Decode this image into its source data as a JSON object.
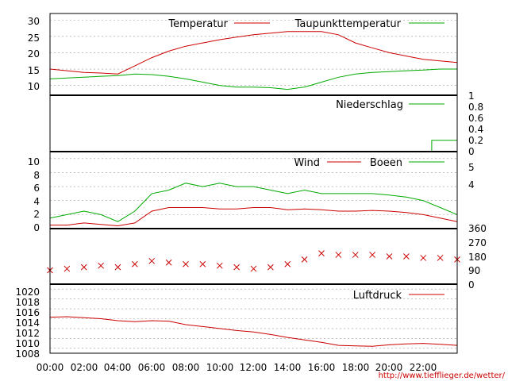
{
  "chart_data": [
    {
      "type": "line",
      "series": [
        {
          "name": "Temperatur",
          "color": "#cc0000",
          "x": [
            0,
            1,
            2,
            3,
            4,
            5,
            6,
            7,
            8,
            9,
            10,
            11,
            12,
            13,
            14,
            15,
            16,
            17,
            18,
            19,
            20,
            21,
            22,
            23,
            24
          ],
          "values": [
            15,
            14.5,
            14,
            13.8,
            13.5,
            16,
            18.5,
            20.5,
            22,
            23,
            24,
            24.8,
            25.5,
            26,
            26.5,
            26.5,
            26.5,
            25.5,
            23,
            21.5,
            20,
            19,
            18,
            17.5,
            17
          ]
        },
        {
          "name": "Taupunkttemperatur",
          "color": "#00aa00",
          "x": [
            0,
            1,
            2,
            3,
            4,
            5,
            6,
            7,
            8,
            9,
            10,
            11,
            12,
            13,
            14,
            15,
            16,
            17,
            18,
            19,
            20,
            21,
            22,
            23,
            24
          ],
          "values": [
            12,
            12.3,
            12.5,
            12.8,
            13,
            13.5,
            13.3,
            12.8,
            12,
            11,
            10,
            9.5,
            9.5,
            9.3,
            8.8,
            9.5,
            11,
            12.5,
            13.5,
            14,
            14.2,
            14.5,
            14.7,
            15,
            15
          ]
        }
      ],
      "ylim": [
        7,
        32
      ],
      "yticks": [
        "30",
        "25",
        "20",
        "15",
        "10"
      ]
    },
    {
      "type": "line",
      "series": [
        {
          "name": "Niederschlag",
          "color": "#00aa00",
          "x": [
            0,
            22.5,
            22.5,
            24,
            24
          ],
          "values": [
            0,
            0,
            0.2,
            0.2,
            0.6
          ]
        }
      ],
      "ylim": [
        0,
        1
      ],
      "yticks_right": [
        "1",
        "0.8",
        "0.6",
        "0.4",
        "0.2",
        "0"
      ]
    },
    {
      "type": "line",
      "series": [
        {
          "name": "Wind",
          "color": "#cc0000",
          "x": [
            0,
            1,
            2,
            3,
            4,
            5,
            6,
            7,
            8,
            9,
            10,
            11,
            12,
            13,
            14,
            15,
            16,
            17,
            18,
            19,
            20,
            21,
            22,
            23,
            24
          ],
          "values": [
            0.5,
            0.5,
            0.8,
            0.6,
            0.4,
            0.8,
            2.5,
            3,
            3,
            3,
            2.8,
            2.8,
            3,
            3,
            2.7,
            2.8,
            2.7,
            2.5,
            2.5,
            2.6,
            2.5,
            2.3,
            2,
            1.5,
            1
          ]
        },
        {
          "name": "Boeen",
          "color": "#00aa00",
          "x": [
            0,
            1,
            2,
            3,
            4,
            5,
            6,
            7,
            8,
            9,
            10,
            11,
            12,
            13,
            14,
            15,
            16,
            17,
            18,
            19,
            20,
            21,
            22,
            23,
            24
          ],
          "values": [
            1.5,
            2,
            2.5,
            2,
            1,
            2.5,
            5,
            5.5,
            6.5,
            6,
            6.5,
            6,
            6,
            5.5,
            5,
            5.5,
            5,
            5,
            5,
            5,
            4.8,
            4.5,
            4,
            3,
            2
          ]
        }
      ],
      "ylim": [
        0,
        11
      ],
      "yticks": [
        "10",
        "8",
        "6",
        "4",
        "2",
        "0"
      ],
      "yticks_right": [
        "5",
        "4"
      ]
    },
    {
      "type": "scatter",
      "series": [
        {
          "name": "",
          "color": "#cc0000",
          "x": [
            0,
            1,
            2,
            3,
            4,
            5,
            6,
            7,
            8,
            9,
            10,
            11,
            12,
            13,
            14,
            15,
            16,
            17,
            18,
            19,
            20,
            21,
            22,
            23,
            24
          ],
          "values": [
            90,
            100,
            110,
            120,
            110,
            130,
            150,
            140,
            130,
            130,
            120,
            110,
            100,
            110,
            130,
            160,
            200,
            190,
            190,
            190,
            180,
            180,
            170,
            170,
            160
          ]
        }
      ],
      "ylim": [
        0,
        360
      ],
      "yticks_right": [
        "360",
        "270",
        "180",
        "90",
        "0"
      ]
    },
    {
      "type": "line",
      "series": [
        {
          "name": "Luftdruck",
          "color": "#cc0000",
          "x": [
            0,
            1,
            2,
            3,
            4,
            5,
            6,
            7,
            8,
            9,
            10,
            11,
            12,
            13,
            14,
            15,
            16,
            17,
            18,
            19,
            20,
            21,
            22,
            23,
            24
          ],
          "values": [
            1014.3,
            1014.4,
            1014.2,
            1014,
            1013.6,
            1013.4,
            1013.6,
            1013.5,
            1012.8,
            1012.4,
            1012,
            1011.6,
            1011.3,
            1010.8,
            1010.2,
            1009.7,
            1009.2,
            1008.6,
            1008.5,
            1008.4,
            1008.7,
            1008.9,
            1009,
            1008.8,
            1008.6
          ]
        }
      ],
      "ylim": [
        1007,
        1021
      ],
      "yticks": [
        "1020",
        "1018",
        "1016",
        "1014",
        "1012",
        "1010",
        "1008"
      ]
    }
  ],
  "x_axis": {
    "labels": [
      "00:00",
      "02:00",
      "04:00",
      "06:00",
      "08:00",
      "10:00",
      "12:00",
      "14:00",
      "16:00",
      "18:00",
      "20:00",
      "22:00"
    ],
    "range": [
      0,
      24
    ]
  },
  "footer": "http://www.tiefflieger.de/wetter/"
}
